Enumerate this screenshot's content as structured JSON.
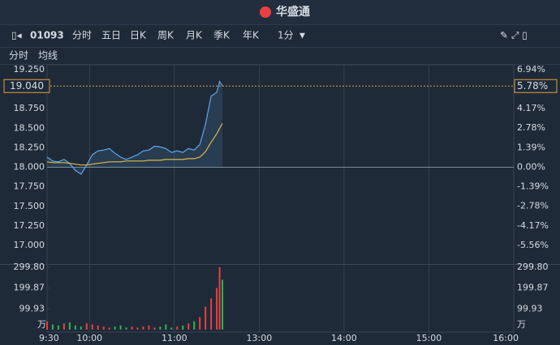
{
  "header": {
    "title": "华盛通"
  },
  "toolbar": {
    "code": "01093",
    "tabs": [
      "分时",
      "五日",
      "日K",
      "周K",
      "月K",
      "季K",
      "年K"
    ],
    "interval": "1分",
    "sub_tabs": [
      "分时",
      "均线"
    ]
  },
  "chart_data": {
    "type": "line",
    "x": [
      0,
      4,
      8,
      12,
      16,
      20,
      24,
      28,
      32,
      36,
      40,
      44,
      48,
      52,
      56,
      60,
      64,
      68,
      72,
      76,
      80,
      84,
      88,
      92,
      96,
      100,
      104,
      108,
      112,
      116,
      120,
      122,
      124
    ],
    "xlim": [
      0,
      330
    ],
    "xticks": [
      {
        "value": 0,
        "label": "9:30"
      },
      {
        "value": 30,
        "label": "10:00"
      },
      {
        "value": 90,
        "label": "11:00"
      },
      {
        "value": 150,
        "label": "13:00"
      },
      {
        "value": 210,
        "label": "14:00"
      },
      {
        "value": 270,
        "label": "15:00"
      },
      {
        "value": 330,
        "label": "16:00"
      }
    ],
    "series": [
      {
        "name": "分时",
        "color": "#5fa8ec",
        "values": [
          18.13,
          18.08,
          18.07,
          18.1,
          18.05,
          17.96,
          17.91,
          18.03,
          18.16,
          18.21,
          18.22,
          18.24,
          18.18,
          18.13,
          18.1,
          18.13,
          18.16,
          18.21,
          18.22,
          18.27,
          18.26,
          18.24,
          18.19,
          18.21,
          18.19,
          18.24,
          18.22,
          18.29,
          18.55,
          18.91,
          18.96,
          19.1,
          19.04
        ]
      },
      {
        "name": "均线",
        "color": "#e0b84a",
        "values": [
          18.07,
          18.06,
          18.06,
          18.06,
          18.05,
          18.04,
          18.03,
          18.03,
          18.04,
          18.05,
          18.06,
          18.07,
          18.07,
          18.07,
          18.08,
          18.08,
          18.08,
          18.08,
          18.09,
          18.09,
          18.09,
          18.1,
          18.1,
          18.1,
          18.1,
          18.11,
          18.11,
          18.13,
          18.2,
          18.32,
          18.43,
          18.5,
          18.56
        ]
      }
    ],
    "ylim": [
      17.0,
      19.25
    ],
    "yticks": [
      {
        "value": 19.25,
        "label": "19.250"
      },
      {
        "value": 18.75,
        "label": "18.750"
      },
      {
        "value": 18.5,
        "label": "18.500"
      },
      {
        "value": 18.25,
        "label": "18.250"
      },
      {
        "value": 18.0,
        "label": "18.000"
      },
      {
        "value": 17.75,
        "label": "17.750"
      },
      {
        "value": 17.5,
        "label": "17.500"
      },
      {
        "value": 17.25,
        "label": "17.250"
      },
      {
        "value": 17.0,
        "label": "17.000"
      }
    ],
    "y2lim": [
      -5.56,
      6.94
    ],
    "y2ticks": [
      {
        "value": 6.94,
        "label": "6.94%"
      },
      {
        "value": 4.17,
        "label": "4.17%"
      },
      {
        "value": 2.78,
        "label": "2.78%"
      },
      {
        "value": 1.39,
        "label": "1.39%"
      },
      {
        "value": 0,
        "label": "0.00%"
      },
      {
        "value": -1.39,
        "label": "-1.39%"
      },
      {
        "value": -2.78,
        "label": "-2.78%"
      },
      {
        "value": -4.17,
        "label": "-4.17%"
      },
      {
        "value": -5.56,
        "label": "-5.56%"
      }
    ],
    "last": {
      "value": 19.04,
      "label": "19.040",
      "change_label": "5.78%"
    },
    "volume": {
      "values": [
        40,
        25,
        20,
        30,
        35,
        20,
        15,
        30,
        25,
        20,
        15,
        10,
        15,
        20,
        10,
        15,
        10,
        15,
        20,
        10,
        15,
        25,
        10,
        15,
        20,
        30,
        40,
        60,
        110,
        150,
        200,
        300,
        240
      ],
      "ylim": [
        0,
        299.8
      ],
      "yticks": [
        {
          "value": 299.8,
          "label": "299.80"
        },
        {
          "value": 199.87,
          "label": "199.87"
        },
        {
          "value": 99.93,
          "label": "99.93"
        }
      ],
      "unit": "万",
      "up_color": "#e8403f",
      "down_color": "#2fb350"
    }
  }
}
